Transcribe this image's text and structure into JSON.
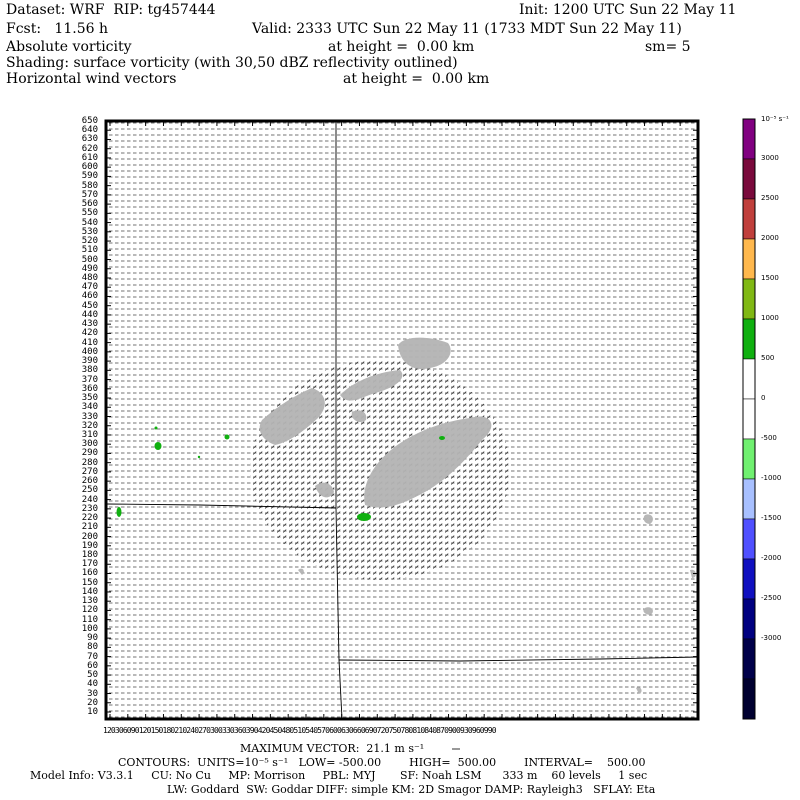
{
  "header": {
    "dataset": "Dataset: WRF  RIP: tg457444",
    "init": "Init: 1200 UTC Sun 22 May 11",
    "fcst": "Fcst:   11.56 h",
    "valid": "Valid: 2333 UTC Sun 22 May 11 (1733 MDT Sun 22 May 11)",
    "field1": "Absolute vorticity",
    "field1_height": "at height =  0.00 km",
    "smoothing": "sm= 5",
    "shading": "Shading: surface vorticity (with 30,50 dBZ reflectivity outlined)",
    "field2": "Horizontal wind vectors",
    "field2_height": "at height =  0.00 km"
  },
  "y_axis_labels": [
    "650",
    "640",
    "630",
    "620",
    "610",
    "600",
    "590",
    "580",
    "570",
    "560",
    "550",
    "540",
    "530",
    "520",
    "510",
    "500",
    "490",
    "480",
    "470",
    "460",
    "450",
    "440",
    "430",
    "420",
    "410",
    "400",
    "390",
    "380",
    "370",
    "360",
    "350",
    "340",
    "330",
    "320",
    "310",
    "300",
    "290",
    "280",
    "270",
    "260",
    "250",
    "240",
    "230",
    "220",
    "210",
    "200",
    "190",
    "180",
    "170",
    "160",
    "150",
    "140",
    "130",
    "120",
    "110",
    "100",
    "90",
    "80",
    "70",
    "60",
    "50",
    "40",
    "30",
    "20",
    "10"
  ],
  "x_axis_label_text": "120306090120150180210240270300330360390420450480510540570600630660690720750780810840870900930960990",
  "colorbar": {
    "unit": "10⁻⁵ s⁻¹",
    "labels": [
      "3000",
      "2500",
      "2000",
      "1500",
      "1000",
      "500",
      "0",
      "-500",
      "-1000",
      "-1500",
      "-2000",
      "-2500",
      "-3000"
    ],
    "colors": [
      "#800080",
      "#7a0a3c",
      "#c0403c",
      "#ffb84d",
      "#80b814",
      "#10b010",
      "#ffffff",
      "#ffffff",
      "#70f070",
      "#a8c0ff",
      "#5050ff",
      "#1010c0",
      "#000080",
      "#00004a",
      "#000030"
    ]
  },
  "footer": {
    "max_vector": "MAXIMUM VECTOR:  21.1 m s⁻¹",
    "contours": "CONTOURS:  UNITS=10⁻⁵ s⁻¹   LOW= -500.00        HIGH=  500.00        INTERVAL=    500.00",
    "model_info": "Model Info: V3.3.1     CU: No Cu     MP: Morrison     PBL: MYJ       SF: Noah LSM      333 m    60 levels     1 sec",
    "model_info2": "LW: Goddard  SW: Goddar DIFF: simple KM: 2D Smagor DAMP: Rayleigh3   SFLAY: Eta"
  }
}
